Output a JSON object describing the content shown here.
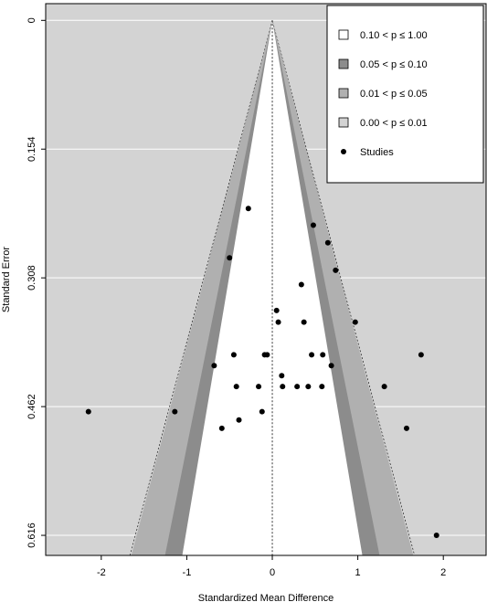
{
  "chart_data": {
    "type": "scatter",
    "subtype": "contour-enhanced funnel plot",
    "xlabel": "Standardized Mean Difference",
    "ylabel": "Standard Error",
    "xlim": [
      -2.65,
      2.5
    ],
    "ylim": [
      0.64,
      -0.02
    ],
    "y_reversed": true,
    "x_ticks": [
      "-2",
      "-1",
      "0",
      "1",
      "2"
    ],
    "y_ticks": [
      "0",
      "0.154",
      "0.308",
      "0.462",
      "0.616"
    ],
    "grid": true,
    "legend_position": "top-right",
    "colors": {
      "background": "#d3d3d3",
      "grid": "#ffffff",
      "region_p_10_100": "#ffffff",
      "region_p_05_10": "#8c8c8c",
      "region_p_01_05": "#b0b0b0",
      "region_p_00_01": "#d3d3d3",
      "points": "#000000"
    },
    "contours": [
      {
        "label": "0.10 < p ≤ 1.00",
        "z": 1.6449,
        "color": "#ffffff"
      },
      {
        "label": "0.05 < p ≤ 0.10",
        "z": 1.96,
        "color": "#8c8c8c"
      },
      {
        "label": "0.01 < p ≤ 0.05",
        "z": 2.5758,
        "color": "#b0b0b0"
      },
      {
        "label": "0.00 < p ≤ 0.01",
        "z": 2.6,
        "color": "#d3d3d3"
      }
    ],
    "legend": [
      {
        "label": "0.10 < p ≤ 1.00",
        "marker": "square",
        "color": "#ffffff"
      },
      {
        "label": "0.05 < p ≤ 0.10",
        "marker": "square",
        "color": "#8c8c8c"
      },
      {
        "label": "0.01 < p ≤ 0.05",
        "marker": "square",
        "color": "#b0b0b0"
      },
      {
        "label": "0.00 < p ≤ 0.01",
        "marker": "square",
        "color": "#d3d3d3"
      },
      {
        "label": "Studies",
        "marker": "dot",
        "color": "#000000"
      }
    ],
    "reference_line_x": 0,
    "series": [
      {
        "name": "Studies",
        "points": [
          {
            "x": -0.28,
            "y": 0.225
          },
          {
            "x": -0.5,
            "y": 0.284
          },
          {
            "x": 0.48,
            "y": 0.245
          },
          {
            "x": 0.65,
            "y": 0.266
          },
          {
            "x": 0.74,
            "y": 0.299
          },
          {
            "x": 0.34,
            "y": 0.316
          },
          {
            "x": 0.05,
            "y": 0.347
          },
          {
            "x": 0.07,
            "y": 0.361
          },
          {
            "x": 0.37,
            "y": 0.361
          },
          {
            "x": 0.97,
            "y": 0.361
          },
          {
            "x": -0.45,
            "y": 0.4
          },
          {
            "x": -0.09,
            "y": 0.4
          },
          {
            "x": -0.06,
            "y": 0.4
          },
          {
            "x": 0.46,
            "y": 0.4
          },
          {
            "x": 0.59,
            "y": 0.4
          },
          {
            "x": 1.74,
            "y": 0.4
          },
          {
            "x": -0.68,
            "y": 0.413
          },
          {
            "x": 0.69,
            "y": 0.413
          },
          {
            "x": 0.11,
            "y": 0.425
          },
          {
            "x": -0.42,
            "y": 0.438
          },
          {
            "x": -0.16,
            "y": 0.438
          },
          {
            "x": 0.12,
            "y": 0.438
          },
          {
            "x": 0.29,
            "y": 0.438
          },
          {
            "x": 0.42,
            "y": 0.438
          },
          {
            "x": 0.58,
            "y": 0.438
          },
          {
            "x": 1.31,
            "y": 0.438
          },
          {
            "x": -2.15,
            "y": 0.468
          },
          {
            "x": -1.14,
            "y": 0.468
          },
          {
            "x": -0.12,
            "y": 0.468
          },
          {
            "x": -0.39,
            "y": 0.478
          },
          {
            "x": -0.59,
            "y": 0.488
          },
          {
            "x": 1.57,
            "y": 0.488
          },
          {
            "x": 1.92,
            "y": 0.616
          }
        ]
      }
    ]
  }
}
